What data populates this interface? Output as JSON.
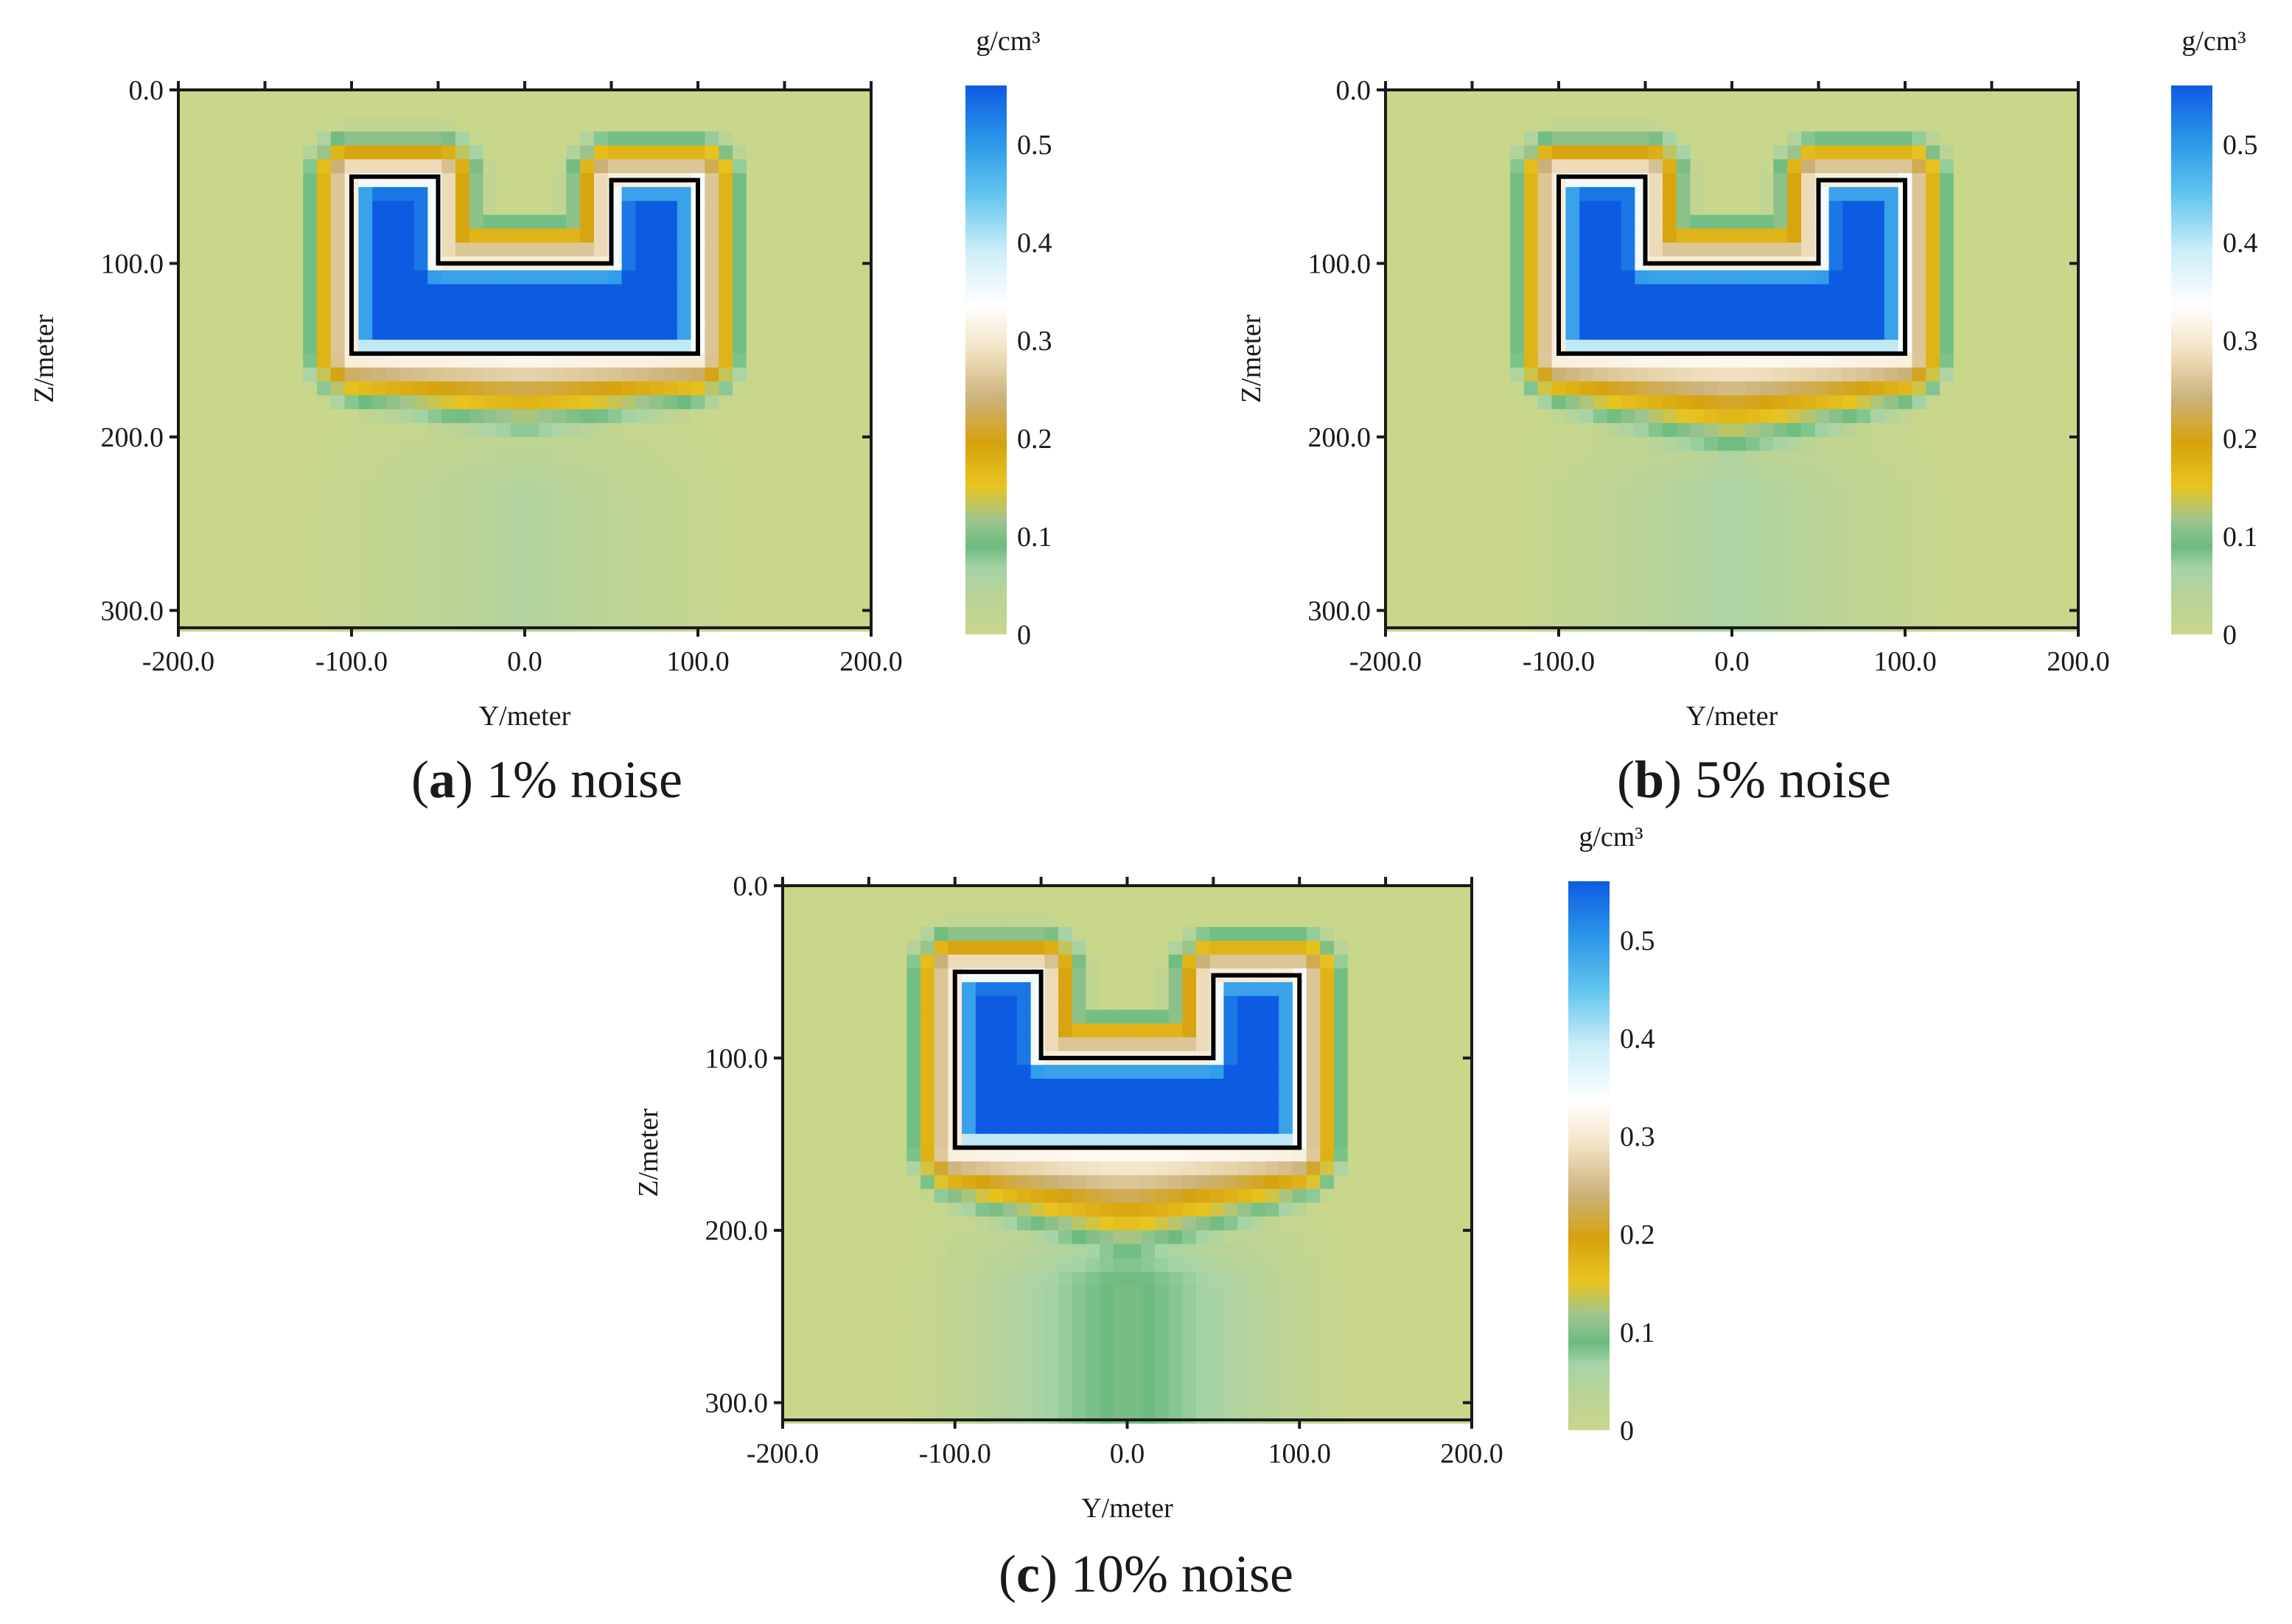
{
  "chart_data": [
    {
      "type": "heatmap",
      "panel_letter": "a",
      "caption_rest": ") 1% noise",
      "caption_open": "(",
      "xlabel": "Y/meter",
      "ylabel": "Z/meter",
      "xlim": [
        -200,
        200
      ],
      "ylim": [
        0,
        310
      ],
      "x_ticks": [
        -200,
        -100,
        0,
        100,
        200
      ],
      "x_tick_labels": [
        "-200.0",
        "-100.0",
        "0.0",
        "100.0",
        "200.0"
      ],
      "y_ticks": [
        0,
        100,
        200,
        300
      ],
      "y_tick_labels": [
        "0.0",
        "100.0",
        "200.0",
        "300.0"
      ],
      "colorbar": {
        "unit": "g/cm³",
        "min": 0,
        "max": 0.56,
        "ticks": [
          0,
          0.1,
          0.2,
          0.3,
          0.4,
          0.5
        ],
        "tick_labels": [
          "0",
          "0.1",
          "0.2",
          "0.3",
          "0.4",
          "0.5"
        ]
      },
      "model_outline": [
        [
          -100,
          50
        ],
        [
          -50,
          50
        ],
        [
          -50,
          100
        ],
        [
          50,
          100
        ],
        [
          50,
          52
        ],
        [
          100,
          52
        ],
        [
          100,
          152
        ],
        [
          -100,
          152
        ]
      ],
      "anomaly": {
        "peak": 0.56,
        "bottom_extent": 25,
        "edge_extent": 32,
        "tail": 0.05
      }
    },
    {
      "type": "heatmap",
      "panel_letter": "b",
      "caption_rest": ") 5% noise",
      "caption_open": "(",
      "xlabel": "Y/meter",
      "ylabel": "Z/meter",
      "xlim": [
        -200,
        200
      ],
      "ylim": [
        0,
        310
      ],
      "x_ticks": [
        -200,
        -100,
        0,
        100,
        200
      ],
      "x_tick_labels": [
        "-200.0",
        "-100.0",
        "0.0",
        "100.0",
        "200.0"
      ],
      "y_ticks": [
        0,
        100,
        200,
        300
      ],
      "y_tick_labels": [
        "0.0",
        "100.0",
        "200.0",
        "300.0"
      ],
      "colorbar": {
        "unit": "g/cm³",
        "min": 0,
        "max": 0.56,
        "ticks": [
          0,
          0.1,
          0.2,
          0.3,
          0.4,
          0.5
        ],
        "tick_labels": [
          "0",
          "0.1",
          "0.2",
          "0.3",
          "0.4",
          "0.5"
        ]
      },
      "model_outline": [
        [
          -100,
          50
        ],
        [
          -50,
          50
        ],
        [
          -50,
          100
        ],
        [
          50,
          100
        ],
        [
          50,
          52
        ],
        [
          100,
          52
        ],
        [
          100,
          152
        ],
        [
          -100,
          152
        ]
      ],
      "anomaly": {
        "peak": 0.56,
        "bottom_extent": 40,
        "edge_extent": 32,
        "tail": 0.06
      }
    },
    {
      "type": "heatmap",
      "panel_letter": "c",
      "caption_rest": ") 10% noise",
      "caption_open": "(",
      "xlabel": "Y/meter",
      "ylabel": "Z/meter",
      "xlim": [
        -200,
        200
      ],
      "ylim": [
        0,
        310
      ],
      "x_ticks": [
        -200,
        -100,
        0,
        100,
        200
      ],
      "x_tick_labels": [
        "-200.0",
        "-100.0",
        "0.0",
        "100.0",
        "200.0"
      ],
      "y_ticks": [
        0,
        100,
        200,
        300
      ],
      "y_tick_labels": [
        "0.0",
        "100.0",
        "200.0",
        "300.0"
      ],
      "colorbar": {
        "unit": "g/cm³",
        "min": 0,
        "max": 0.56,
        "ticks": [
          0,
          0.1,
          0.2,
          0.3,
          0.4,
          0.5
        ],
        "tick_labels": [
          "0",
          "0.1",
          "0.2",
          "0.3",
          "0.4",
          "0.5"
        ]
      },
      "model_outline": [
        [
          -100,
          50
        ],
        [
          -50,
          50
        ],
        [
          -50,
          100
        ],
        [
          50,
          100
        ],
        [
          50,
          52
        ],
        [
          100,
          52
        ],
        [
          100,
          152
        ],
        [
          -100,
          152
        ]
      ],
      "anomaly": {
        "peak": 0.56,
        "bottom_extent": 50,
        "edge_extent": 32,
        "tail": 0.1
      }
    }
  ],
  "colors": {
    "background": "#c9d78b",
    "outline": "#000000",
    "colormap": [
      "#c9d78b",
      "#a9d4a6",
      "#6cbb80",
      "#9fc690",
      "#e9c31f",
      "#d7a513",
      "#c9b070",
      "#f2e2c2",
      "#ffffff",
      "#cdeef8",
      "#66c8ee",
      "#2a98e8",
      "#1f7ee9",
      "#0f5fe4"
    ]
  }
}
